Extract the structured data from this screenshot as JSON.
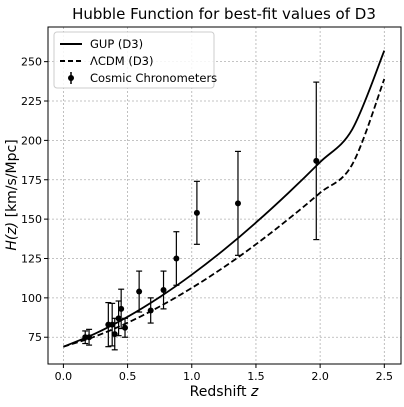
{
  "chart_data": {
    "type": "line",
    "title": "Hubble Function for best-fit values of D3",
    "xlabel": "Redshift z",
    "xlabel_text": "Redshift ",
    "xlabel_var": "z",
    "ylabel": "H(z) [km/s/Mpc]",
    "ylabel_text": " [km/s/Mpc]",
    "ylabel_var": "H(z)",
    "xlim": [
      -0.12,
      2.63
    ],
    "ylim": [
      58,
      272
    ],
    "xticks": [
      0.0,
      0.5,
      1.0,
      1.5,
      2.0,
      2.5
    ],
    "xtick_labels": [
      "0.0",
      "0.5",
      "1.0",
      "1.5",
      "2.0",
      "2.5"
    ],
    "yticks": [
      75,
      100,
      125,
      150,
      175,
      200,
      225,
      250
    ],
    "ytick_labels": [
      "75",
      "100",
      "125",
      "150",
      "175",
      "200",
      "225",
      "250"
    ],
    "grid": true,
    "legend_position": "top-left",
    "series": [
      {
        "name": "GUP (D3)",
        "kind": "line",
        "style": "solid",
        "color": "#000000",
        "x": [
          0.0,
          0.25,
          0.5,
          0.75,
          1.0,
          1.25,
          1.5,
          1.75,
          2.0,
          2.25,
          2.5
        ],
        "y": [
          69.0,
          77.4,
          88.0,
          100.5,
          114.7,
          130.5,
          147.8,
          166.4,
          186.2,
          207.0,
          257.0
        ]
      },
      {
        "name": "ΛCDM (D3)",
        "kind": "line",
        "style": "dashed",
        "color": "#000000",
        "x": [
          0.0,
          0.25,
          0.5,
          0.75,
          1.0,
          1.25,
          1.5,
          1.75,
          2.0,
          2.25,
          2.5
        ],
        "y": [
          69.0,
          75.6,
          84.2,
          94.5,
          106.3,
          119.5,
          134.0,
          149.8,
          166.7,
          184.7,
          239.0
        ]
      },
      {
        "name": "Cosmic Chronometers",
        "kind": "errorbar",
        "color": "#000000",
        "points": [
          {
            "x": 0.17,
            "y": 75.0,
            "err": 4.0
          },
          {
            "x": 0.2,
            "y": 75.0,
            "err": 5.0
          },
          {
            "x": 0.35,
            "y": 83.0,
            "err": 14.0
          },
          {
            "x": 0.38,
            "y": 83.0,
            "err": 13.5
          },
          {
            "x": 0.4,
            "y": 77.0,
            "err": 10.0
          },
          {
            "x": 0.43,
            "y": 87.0,
            "err": 11.0
          },
          {
            "x": 0.45,
            "y": 93.0,
            "err": 12.5
          },
          {
            "x": 0.48,
            "y": 81.0,
            "err": 6.0
          },
          {
            "x": 0.59,
            "y": 104.0,
            "err": 13.0
          },
          {
            "x": 0.68,
            "y": 92.0,
            "err": 8.0
          },
          {
            "x": 0.78,
            "y": 105.0,
            "err": 12.0
          },
          {
            "x": 0.88,
            "y": 125.0,
            "err": 17.0
          },
          {
            "x": 1.04,
            "y": 154.0,
            "err": 20.0
          },
          {
            "x": 1.36,
            "y": 160.0,
            "err": 33.0
          },
          {
            "x": 1.97,
            "y": 187.0,
            "err": 50.0
          }
        ]
      }
    ]
  }
}
